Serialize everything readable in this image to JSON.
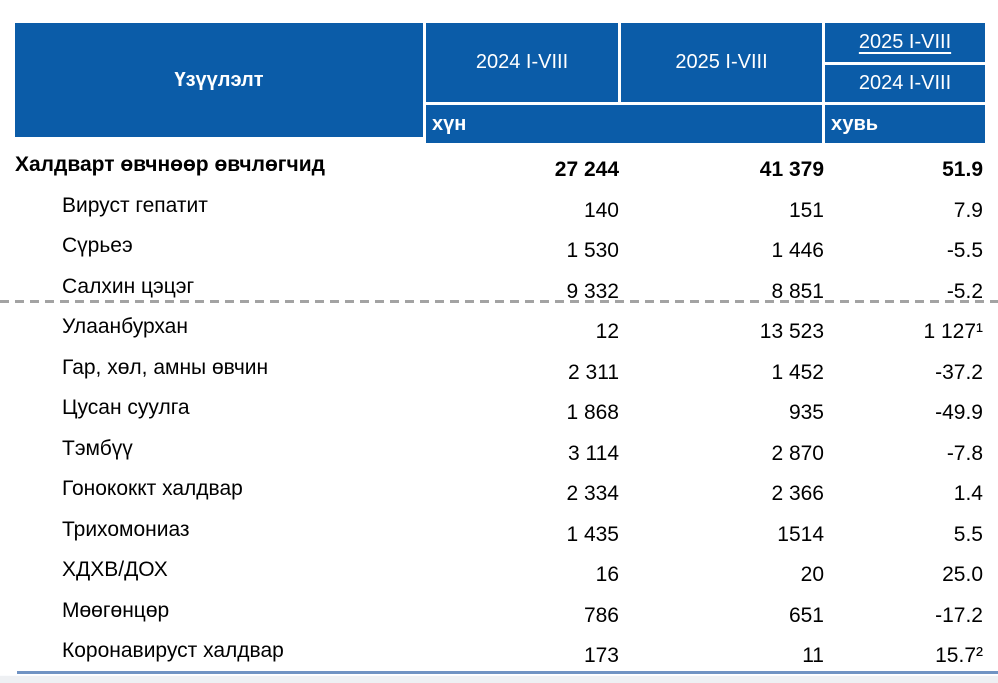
{
  "table": {
    "header": {
      "indicator_label": "Үзүүлэлт",
      "col_2024": "2024 I-VIII",
      "col_2025": "2025 I-VIII",
      "ratio_numerator": "2025 I-VIII",
      "ratio_denominator": "2024 I-VIII",
      "unit_person": "хүн",
      "unit_percent": "хувь"
    },
    "rows": [
      {
        "label": "Халдварт өвчнөөр өвчлөгчид",
        "v2024": "27 244",
        "v2025": "41 379",
        "change": "51.9",
        "bold": true
      },
      {
        "label": "Вируст гепатит",
        "v2024": "140",
        "v2025": "151",
        "change": "7.9",
        "bold": false
      },
      {
        "label": "Сүрьеэ",
        "v2024": "1 530",
        "v2025": "1 446",
        "change": "-5.5",
        "bold": false
      },
      {
        "label": "Салхин цэцэг",
        "v2024": "9 332",
        "v2025": "8 851",
        "change": "-5.2",
        "bold": false
      },
      {
        "label": "Улаанбурхан",
        "v2024": "12",
        "v2025": "13 523",
        "change": "1 127¹",
        "bold": false
      },
      {
        "label": "Гар, хөл, амны өвчин",
        "v2024": "2 311",
        "v2025": "1 452",
        "change": "-37.2",
        "bold": false
      },
      {
        "label": "Цусан суулга",
        "v2024": "1 868",
        "v2025": "935",
        "change": "-49.9",
        "bold": false
      },
      {
        "label": "Тэмбүү",
        "v2024": "3 114",
        "v2025": "2 870",
        "change": "-7.8",
        "bold": false
      },
      {
        "label": "Гонококкт халдвар",
        "v2024": "2 334",
        "v2025": "2 366",
        "change": "1.4",
        "bold": false
      },
      {
        "label": "Трихомониаз",
        "v2024": "1 435",
        "v2025": "1514",
        "change": "5.5",
        "bold": false
      },
      {
        "label": "ХДХВ/ДОХ",
        "v2024": "16",
        "v2025": "20",
        "change": "25.0",
        "bold": false
      },
      {
        "label": "Мөөгөнцөр",
        "v2024": "786",
        "v2025": "651",
        "change": "-17.2",
        "bold": false
      },
      {
        "label": "Коронавируст халдвар",
        "v2024": "173",
        "v2025": "11",
        "change": "15.7²",
        "bold": false
      }
    ],
    "colors": {
      "header_bg": "#0b5ca8",
      "header_text": "#ffffff",
      "bottom_line": "#7093c3",
      "dashed_line": "#a3a3a3"
    }
  }
}
